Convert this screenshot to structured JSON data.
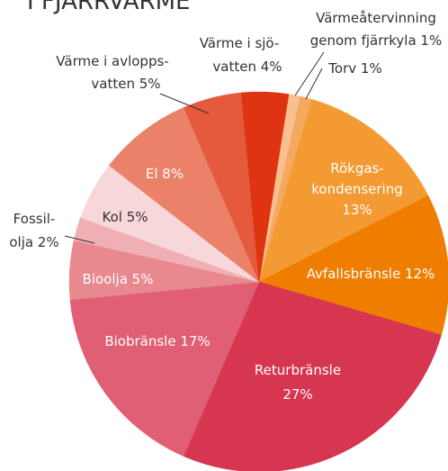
{
  "chart_data": {
    "type": "pie",
    "title": "I FJÄRRVÄRME",
    "categories": [
      [
        "Värmeåtervinning",
        "genom fjärrkyla 1%"
      ],
      [
        "Torv 1%"
      ],
      [
        "Rökgas-",
        "kondensering",
        "13%"
      ],
      [
        "Avfallsbränsle 12%"
      ],
      [
        "Returbränsle",
        "27%"
      ],
      [
        "Biobränsle 17%"
      ],
      [
        "Bioolja 5%"
      ],
      [
        "Fossil-",
        "olja 2%"
      ],
      [
        "Kol 5%"
      ],
      [
        "El 8%"
      ],
      [
        "Värme i avlopps-",
        "vatten 5%"
      ],
      [
        "Värme i sjö-",
        "vatten 4%"
      ]
    ],
    "values": [
      1,
      1,
      13,
      12,
      27,
      17,
      5,
      2,
      5,
      8,
      5,
      4
    ],
    "colors": [
      "#f8c08f",
      "#f5a860",
      "#f39a32",
      "#ef7d00",
      "#d6364f",
      "#e05f74",
      "#e8888f",
      "#efb0b5",
      "#f7d7da",
      "#ec8169",
      "#e55a3c",
      "#de3412"
    ]
  }
}
